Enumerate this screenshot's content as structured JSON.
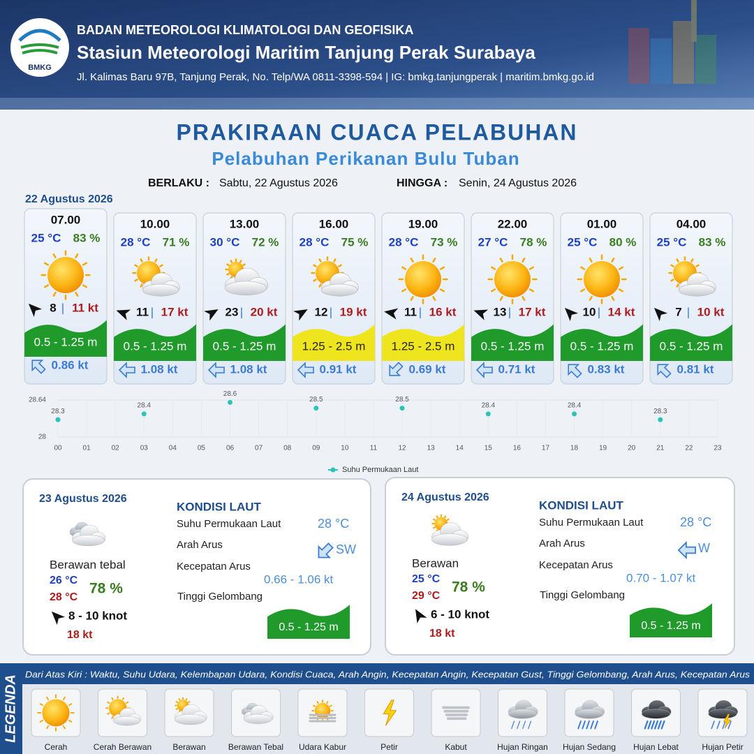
{
  "header": {
    "logo": "BMKG",
    "agency": "BADAN METEOROLOGI KLIMATOLOGI DAN GEOFISIKA",
    "station": "Stasiun Meteorologi Maritim Tanjung Perak Surabaya",
    "address": "Jl. Kalimas Baru 97B, Tanjung Perak, No. Telp/WA 0811-3398-594 | IG: bmkg.tanjungperak | maritim.bmkg.go.id"
  },
  "title": "PRAKIRAAN CUACA PELABUHAN",
  "subtitle": "Pelabuhan Perikanan Bulu Tuban",
  "validity": {
    "from_label": "BERLAKU :",
    "from": "Sabtu, 22 Agustus 2026",
    "to_label": "HINGGA :",
    "to": "Senin, 24 Agustus 2026"
  },
  "separator": "|",
  "day1": {
    "date": "22 Agustus 2026",
    "forecasts": [
      {
        "time": "07.00",
        "temp": "25 °C",
        "humidity": "83 %",
        "icon": "cerah",
        "wind_deg": 315,
        "wind": "8",
        "gust": "11 kt",
        "wave": "0.5 - 1.25 m",
        "wave_color": "#1f9a2b",
        "wave_text_color": "#ffffff",
        "current_deg": 315,
        "current": "0.86 kt"
      },
      {
        "time": "10.00",
        "temp": "28 °C",
        "humidity": "71 %",
        "icon": "cerah_berawan",
        "wind_deg": 290,
        "wind": "11",
        "gust": "17 kt",
        "wave": "0.5 - 1.25 m",
        "wave_color": "#1f9a2b",
        "wave_text_color": "#ffffff",
        "current_deg": 270,
        "current": "1.08 kt"
      },
      {
        "time": "13.00",
        "temp": "30 °C",
        "humidity": "72 %",
        "icon": "berawan",
        "wind_deg": 60,
        "wind": "23",
        "gust": "20 kt",
        "wave": "0.5 - 1.25 m",
        "wave_color": "#1f9a2b",
        "wave_text_color": "#ffffff",
        "current_deg": 270,
        "current": "1.08 kt"
      },
      {
        "time": "16.00",
        "temp": "28 °C",
        "humidity": "75 %",
        "icon": "cerah_berawan",
        "wind_deg": 60,
        "wind": "12",
        "gust": "19 kt",
        "wave": "1.25 - 2.5 m",
        "wave_color": "#efe51e",
        "wave_text_color": "#222222",
        "current_deg": 270,
        "current": "0.91 kt"
      },
      {
        "time": "19.00",
        "temp": "28 °C",
        "humidity": "73 %",
        "icon": "cerah",
        "wind_deg": 280,
        "wind": "11",
        "gust": "16 kt",
        "wave": "1.25 - 2.5 m",
        "wave_color": "#efe51e",
        "wave_text_color": "#222222",
        "current_deg": 225,
        "current": "0.69 kt"
      },
      {
        "time": "22.00",
        "temp": "27 °C",
        "humidity": "78 %",
        "icon": "cerah",
        "wind_deg": 290,
        "wind": "13",
        "gust": "17 kt",
        "wave": "0.5 - 1.25 m",
        "wave_color": "#1f9a2b",
        "wave_text_color": "#ffffff",
        "current_deg": 270,
        "current": "0.71 kt"
      },
      {
        "time": "01.00",
        "temp": "25 °C",
        "humidity": "80 %",
        "icon": "cerah",
        "wind_deg": 315,
        "wind": "10",
        "gust": "14 kt",
        "wave": "0.5 - 1.25 m",
        "wave_color": "#1f9a2b",
        "wave_text_color": "#ffffff",
        "current_deg": 315,
        "current": "0.83 kt"
      },
      {
        "time": "04.00",
        "temp": "25 °C",
        "humidity": "83 %",
        "icon": "cerah_berawan",
        "wind_deg": 315,
        "wind": "7",
        "gust": "10 kt",
        "wave": "0.5 - 1.25 m",
        "wave_color": "#1f9a2b",
        "wave_text_color": "#ffffff",
        "current_deg": 315,
        "current": "0.81 kt"
      }
    ]
  },
  "chart_data": {
    "type": "scatter",
    "x": [
      0,
      3,
      6,
      9,
      12,
      15,
      18,
      21
    ],
    "series": [
      {
        "name": "Suhu Permukaan Laut",
        "color": "#2cc4b6",
        "values": [
          28.3,
          28.4,
          28.6,
          28.5,
          28.5,
          28.4,
          28.4,
          28.3
        ]
      }
    ],
    "xlim": [
      0,
      23
    ],
    "ylim": [
      28,
      28.64
    ],
    "yticks": [
      28,
      28.64
    ],
    "xticks": [
      {
        "value": 0,
        "label": "00"
      },
      {
        "value": 1,
        "label": "01"
      },
      {
        "value": 2,
        "label": "02"
      },
      {
        "value": 3,
        "label": "03"
      },
      {
        "value": 4,
        "label": "04"
      },
      {
        "value": 5,
        "label": "05"
      },
      {
        "value": 6,
        "label": "06"
      },
      {
        "value": 7,
        "label": "07"
      },
      {
        "value": 8,
        "label": "08"
      },
      {
        "value": 9,
        "label": "09"
      },
      10,
      11,
      12,
      13,
      14,
      15,
      16,
      17,
      18,
      19,
      20,
      21,
      22,
      23
    ],
    "grid": true,
    "legend": "bottom"
  },
  "days": [
    {
      "date": "23 Agustus 2026",
      "icon": "berawan_tebal",
      "condition": "Berawan tebal",
      "temp_min": "26 °C",
      "temp_max": "28 °C",
      "humidity": "78 %",
      "wind_deg": 315,
      "wind": "8  - 10 knot",
      "gust": "18 kt",
      "sea": {
        "heading": "KONDISI LAUT",
        "sst_label": "Suhu Permukaan Laut",
        "sst": "28 °C",
        "dir_label": "Arah Arus",
        "dir": "SW",
        "dir_deg": 225,
        "speed_label": "Kecepatan Arus",
        "speed": "0.66  - 1.06 kt",
        "wave_label": "Tinggi Gelombang",
        "wave": "0.5 - 1.25 m",
        "wave_color": "#1f9a2b"
      }
    },
    {
      "date": "24 Agustus 2026",
      "icon": "berawan",
      "condition": "Berawan",
      "temp_min": "25 °C",
      "temp_max": "29 °C",
      "humidity": "78 %",
      "wind_deg": 330,
      "wind": "6  - 10 knot",
      "gust": "18 kt",
      "sea": {
        "heading": "KONDISI LAUT",
        "sst_label": "Suhu Permukaan Laut",
        "sst": "28 °C",
        "dir_label": "Arah Arus",
        "dir": "W",
        "dir_deg": 270,
        "speed_label": "Kecepatan Arus",
        "speed": "0.70 - 1.07 kt",
        "wave_label": "Tinggi Gelombang",
        "wave": "0.5 - 1.25 m",
        "wave_color": "#1f9a2b"
      }
    }
  ],
  "legend": {
    "title": "LEGENDA",
    "description": "Dari Atas Kiri : Waktu, Suhu Udara, Kelembapan Udara, Kondisi Cuaca, Arah Angin, Kecepatan Angin, Kecepatan Gust, Tinggi Gelombang, Arah Arus, Kecepatan Arus",
    "items": [
      {
        "icon": "cerah",
        "label": "Cerah"
      },
      {
        "icon": "cerah_berawan",
        "label": "Cerah Berawan"
      },
      {
        "icon": "berawan",
        "label": "Berawan"
      },
      {
        "icon": "berawan_tebal",
        "label": "Berawan Tebal"
      },
      {
        "icon": "udara_kabur",
        "label": "Udara Kabur"
      },
      {
        "icon": "petir",
        "label": "Petir"
      },
      {
        "icon": "kabut",
        "label": "Kabut"
      },
      {
        "icon": "hujan_ringan",
        "label": "Hujan Ringan"
      },
      {
        "icon": "hujan_sedang",
        "label": "Hujan Sedang"
      },
      {
        "icon": "hujan_lebat",
        "label": "Hujan Lebat"
      },
      {
        "icon": "hujan_petir",
        "label": "Hujan Petir"
      }
    ]
  }
}
